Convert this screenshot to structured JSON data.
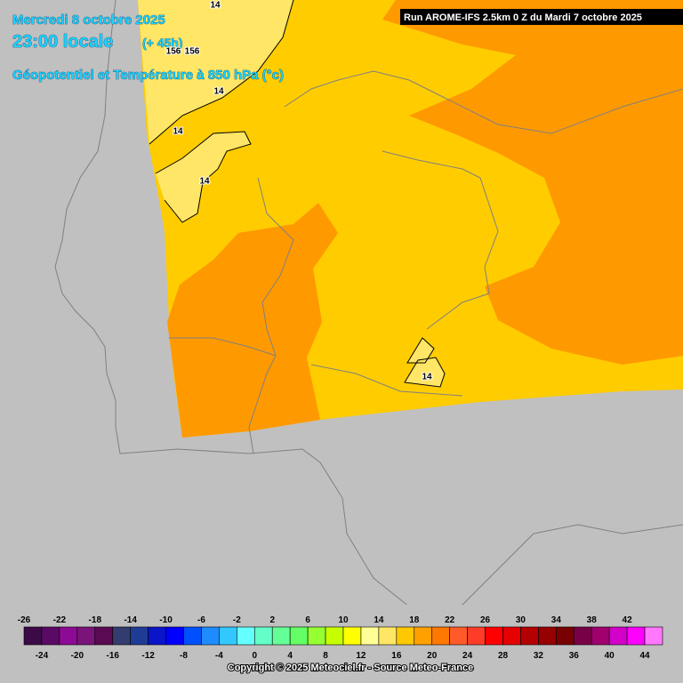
{
  "header": {
    "date": "Mercredi 8 octobre 2025",
    "time": "23:00 locale",
    "lead": "(+ 45h)",
    "field": "Géopotentiel et Température à 850 hPa (°c)",
    "run": "Run AROME-IFS 2.5km 0 Z du Mardi 7 octobre 2025"
  },
  "contour_labels": [
    "14",
    "156",
    "156",
    "14",
    "14",
    "14",
    "14"
  ],
  "colorbar": {
    "labels": [
      -26,
      -24,
      -22,
      -20,
      -18,
      -16,
      -14,
      -12,
      -10,
      -8,
      -6,
      -4,
      -2,
      0,
      2,
      4,
      6,
      8,
      10,
      12,
      14,
      16,
      18,
      20,
      22,
      24,
      26,
      28,
      30,
      32,
      34,
      36,
      38,
      40,
      42,
      44
    ],
    "colors": [
      "#3c0a46",
      "#5a0a64",
      "#8c0a96",
      "#7a1478",
      "#5a0a50",
      "#323c6e",
      "#1e3c96",
      "#0a14c8",
      "#0000ff",
      "#0050ff",
      "#1e8cff",
      "#32c8ff",
      "#64ffff",
      "#64ffc8",
      "#64ff96",
      "#64ff64",
      "#96ff32",
      "#c8ff00",
      "#ffff00",
      "#ffff96",
      "#ffe664",
      "#ffc800",
      "#ffa000",
      "#ff7800",
      "#ff5a28",
      "#ff3c28",
      "#ff0000",
      "#e60000",
      "#b40000",
      "#960000",
      "#780000",
      "#780046",
      "#a0006e",
      "#d200c8",
      "#ff00ff",
      "#ff78ff"
    ]
  },
  "footer": {
    "copyright": "Copyright © 2025 Meteociel.fr - Source Meteo-France"
  }
}
